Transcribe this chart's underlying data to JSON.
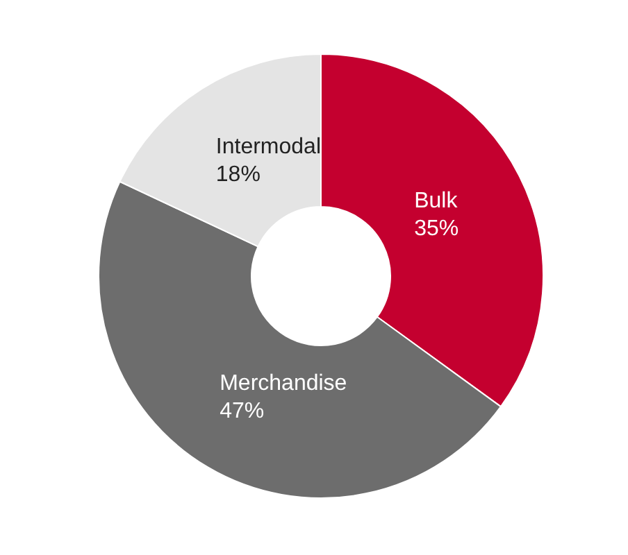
{
  "chart_data": {
    "type": "donut",
    "categories": [
      "Bulk",
      "Merchandise",
      "Intermodal"
    ],
    "values": [
      35,
      47,
      18
    ],
    "value_labels": [
      "35%",
      "47%",
      "18%"
    ],
    "colors": [
      "#c4002f",
      "#6d6d6d",
      "#e4e4e4"
    ]
  }
}
